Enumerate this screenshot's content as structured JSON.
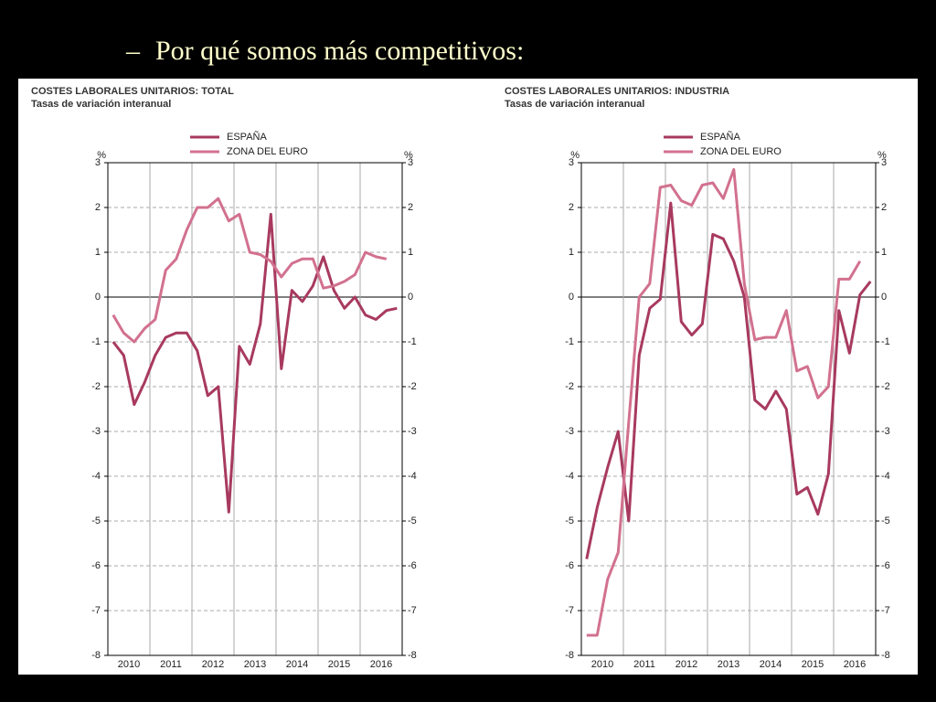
{
  "bullet": "–",
  "slide_title": "Por qué somos más competitivos:",
  "chart_data": [
    {
      "type": "line",
      "title": "COSTES LABORALES UNITARIOS: TOTAL",
      "subtitle": "Tasas de variación interanual",
      "y_unit": "%",
      "categories": [
        null,
        "2010",
        null,
        null,
        null,
        "2011",
        null,
        null,
        null,
        "2012",
        null,
        null,
        null,
        "2013",
        null,
        null,
        null,
        "2014",
        null,
        null,
        null,
        "2015",
        null,
        null,
        null,
        "2016",
        null,
        null
      ],
      "series": [
        {
          "name": "ESPAÑA",
          "color": "#a83a5f",
          "values": [
            -1.0,
            -1.3,
            -2.4,
            -1.9,
            -1.3,
            -0.9,
            -0.8,
            -0.8,
            -1.2,
            -2.2,
            -2.0,
            -4.8,
            -1.1,
            -1.5,
            -0.6,
            1.85,
            -1.6,
            0.15,
            -0.1,
            0.25,
            0.9,
            0.15,
            -0.25,
            0.0,
            -0.4,
            -0.5,
            -0.3,
            -0.25
          ]
        },
        {
          "name": "ZONA DEL EURO",
          "color": "#d2718f",
          "values": [
            -0.4,
            -0.8,
            -1.0,
            -0.7,
            -0.5,
            0.6,
            0.85,
            1.5,
            2.0,
            2.0,
            2.2,
            1.7,
            1.85,
            1.0,
            0.95,
            0.8,
            0.45,
            0.75,
            0.85,
            0.85,
            0.2,
            0.25,
            0.35,
            0.5,
            1.0,
            0.9,
            0.85,
            null
          ]
        }
      ],
      "ylim": [
        -8,
        3
      ],
      "yticks": [
        -8,
        -7,
        -6,
        -5,
        -4,
        -3,
        -2,
        -1,
        0,
        1,
        2,
        3
      ],
      "grid": true
    },
    {
      "type": "line",
      "title": "COSTES LABORALES UNITARIOS: INDUSTRIA",
      "subtitle": "Tasas de variación interanual",
      "y_unit": "%",
      "categories": [
        null,
        "2010",
        null,
        null,
        null,
        "2011",
        null,
        null,
        null,
        "2012",
        null,
        null,
        null,
        "2013",
        null,
        null,
        null,
        "2014",
        null,
        null,
        null,
        "2015",
        null,
        null,
        null,
        "2016",
        null,
        null
      ],
      "series": [
        {
          "name": "ESPAÑA",
          "color": "#a83a5f",
          "values": [
            -5.85,
            -4.7,
            -3.8,
            -3.0,
            -5.0,
            -1.3,
            -0.25,
            -0.05,
            2.1,
            -0.55,
            -0.85,
            -0.6,
            1.4,
            1.3,
            0.8,
            0.0,
            -2.3,
            -2.5,
            -2.1,
            -2.5,
            -4.4,
            -4.25,
            -4.85,
            -3.95,
            -0.3,
            -1.25,
            0.05,
            0.35
          ]
        },
        {
          "name": "ZONA DEL EURO",
          "color": "#d2718f",
          "values": [
            -7.55,
            -7.55,
            -6.3,
            -5.7,
            -2.8,
            0.0,
            0.3,
            2.45,
            2.5,
            2.15,
            2.05,
            2.5,
            2.55,
            2.2,
            2.85,
            0.3,
            -0.95,
            -0.9,
            -0.9,
            -0.3,
            -1.65,
            -1.55,
            -2.25,
            -2.0,
            0.4,
            0.4,
            0.8,
            null
          ]
        }
      ],
      "ylim": [
        -8,
        3
      ],
      "yticks": [
        -8,
        -7,
        -6,
        -5,
        -4,
        -3,
        -2,
        -1,
        0,
        1,
        2,
        3
      ],
      "grid": true
    }
  ]
}
